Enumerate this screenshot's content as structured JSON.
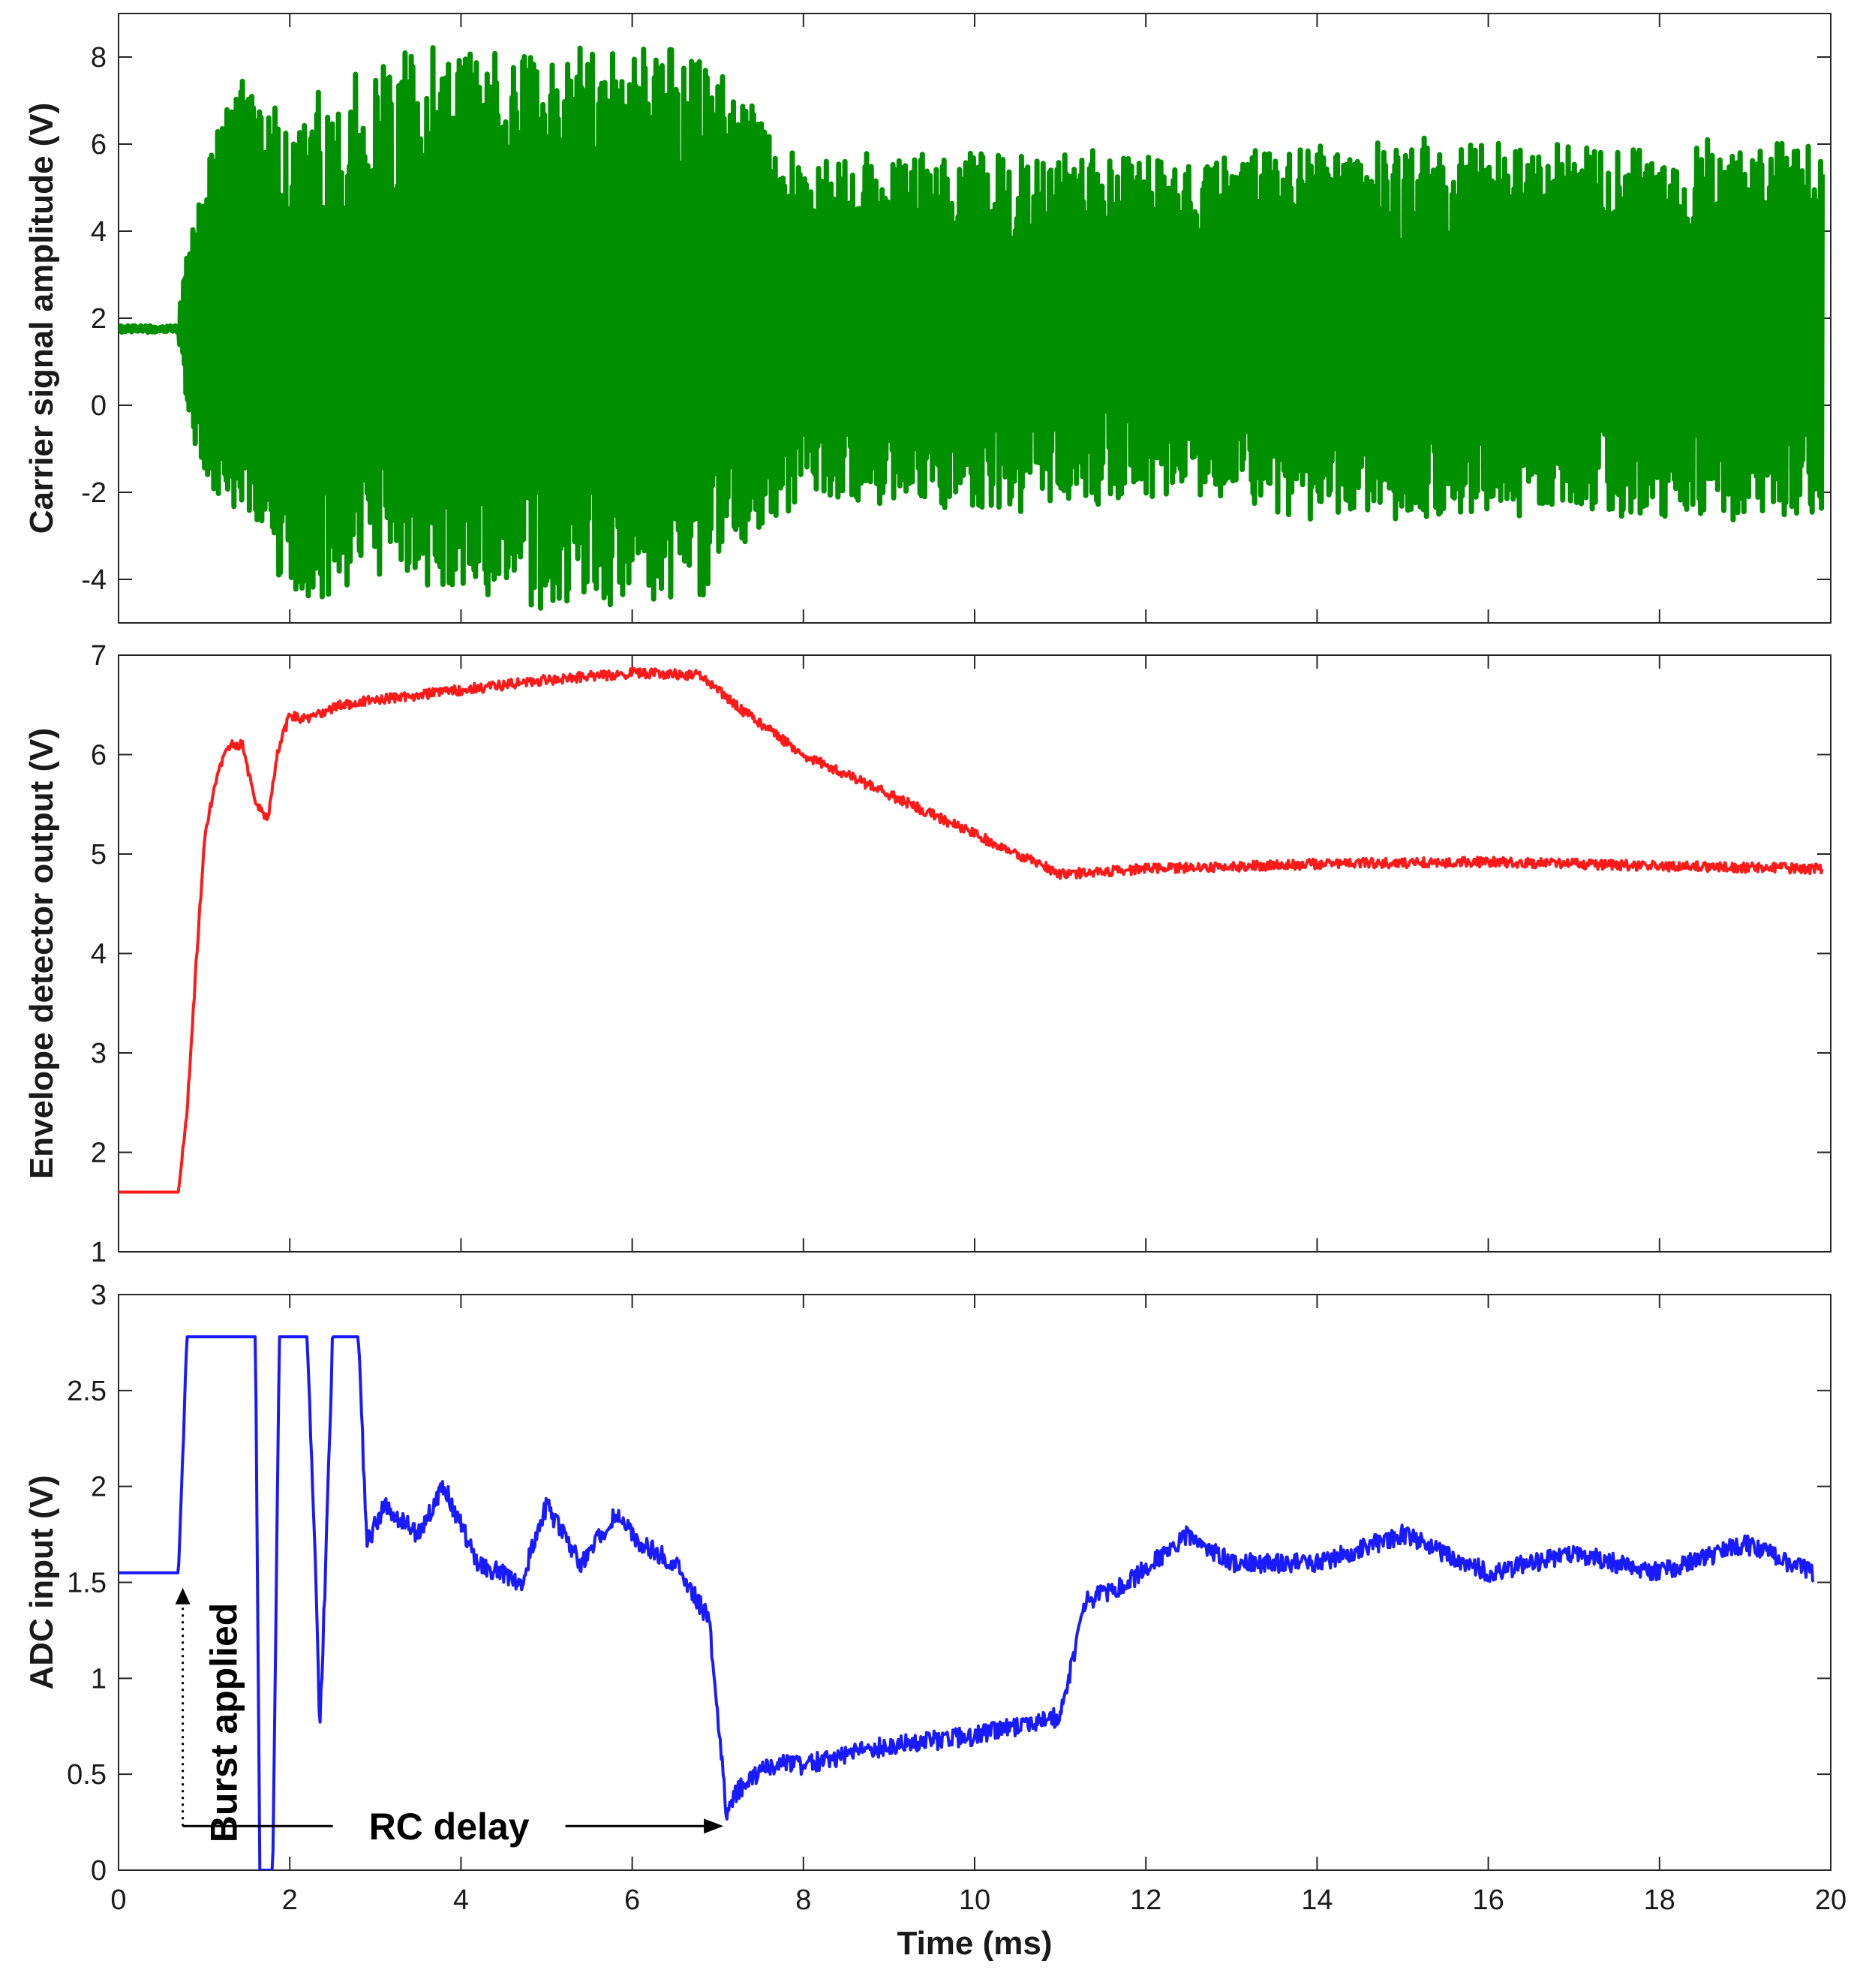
{
  "chart_data": [
    {
      "type": "line",
      "ylabel": "Carrier signal amplitude (V)",
      "xlabel": "",
      "xlim": [
        0,
        20
      ],
      "ylim": [
        -5,
        9
      ],
      "yticks": [
        "-4",
        "-2",
        "0",
        "2",
        "4",
        "6",
        "8"
      ],
      "grid": false,
      "series": [
        {
          "color": "#009000",
          "style": "dense-oscillation",
          "x": [
            0,
            0.7,
            0.8,
            1.0,
            1.5,
            2.0,
            3.0,
            4.0,
            5.0,
            6.0,
            6.8,
            7.5,
            8.0,
            10.0,
            12.0,
            14.0,
            16.0,
            18.0,
            19.9
          ],
          "upper": [
            1.9,
            1.9,
            3.5,
            6.0,
            7.5,
            7.0,
            8.0,
            8.2,
            8.0,
            8.3,
            8.3,
            6.5,
            5.6,
            5.8,
            5.7,
            6.0,
            6.0,
            6.0,
            6.0
          ],
          "lower": [
            1.6,
            1.6,
            0.0,
            -2.0,
            -3.0,
            -4.5,
            -4.0,
            -4.3,
            -4.6,
            -4.7,
            -4.3,
            -3.0,
            -2.0,
            -2.4,
            -2.2,
            -2.5,
            -2.6,
            -2.5,
            -2.5
          ]
        }
      ]
    },
    {
      "type": "line",
      "ylabel": "Envelope detector output (V)",
      "xlabel": "",
      "xlim": [
        0,
        20
      ],
      "ylim": [
        1,
        7
      ],
      "yticks": [
        "1",
        "2",
        "3",
        "4",
        "5",
        "6",
        "7"
      ],
      "grid": false,
      "series": [
        {
          "color": "#ff1a1a",
          "x": [
            0,
            0.7,
            0.8,
            0.9,
            1.0,
            1.1,
            1.2,
            1.3,
            1.45,
            1.6,
            1.75,
            1.85,
            2.0,
            2.2,
            2.6,
            3.0,
            4.0,
            5.0,
            6.0,
            6.8,
            7.2,
            8.0,
            9.0,
            10.0,
            11.0,
            12.0,
            14.0,
            16.0,
            18.0,
            19.9
          ],
          "y": [
            1.6,
            1.6,
            2.4,
            3.8,
            5.1,
            5.6,
            5.9,
            6.1,
            6.1,
            5.5,
            5.35,
            6.0,
            6.4,
            6.35,
            6.5,
            6.55,
            6.65,
            6.75,
            6.82,
            6.8,
            6.5,
            6.0,
            5.6,
            5.2,
            4.8,
            4.85,
            4.9,
            4.92,
            4.88,
            4.85
          ],
          "noise": 0.05
        }
      ]
    },
    {
      "type": "line",
      "ylabel": "ADC input (V)",
      "xlabel": "Time (ms)",
      "xlim": [
        0,
        20
      ],
      "ylim": [
        0,
        3
      ],
      "xticks": [
        "0",
        "2",
        "4",
        "6",
        "8",
        "10",
        "12",
        "14",
        "16",
        "18",
        "20"
      ],
      "yticks": [
        "0",
        "0.5",
        "1",
        "1.5",
        "2",
        "2.5",
        "3"
      ],
      "grid": false,
      "series": [
        {
          "color": "#1a1aff",
          "x": [
            0,
            0.7,
            0.8,
            1.6,
            1.65,
            1.75,
            1.8,
            1.88,
            1.95,
            2.2,
            2.3,
            2.35,
            2.42,
            2.5,
            2.8,
            2.9,
            3.1,
            3.5,
            3.8,
            4.2,
            4.7,
            5.0,
            5.4,
            5.8,
            6.1,
            6.5,
            6.9,
            7.1,
            7.2,
            7.6,
            8.0,
            9.0,
            10.0,
            11.0,
            11.3,
            11.8,
            12.5,
            13.0,
            14.0,
            15.0,
            16.0,
            17.0,
            18.0,
            19.0,
            19.8
          ],
          "y": [
            1.55,
            1.55,
            2.78,
            2.78,
            0.0,
            0.0,
            0.0,
            2.78,
            2.78,
            2.78,
            1.6,
            0.7,
            1.6,
            2.78,
            2.78,
            1.7,
            1.9,
            1.75,
            2.0,
            1.6,
            1.5,
            1.9,
            1.6,
            1.85,
            1.7,
            1.6,
            1.3,
            0.3,
            0.4,
            0.55,
            0.55,
            0.65,
            0.7,
            0.8,
            1.4,
            1.5,
            1.75,
            1.6,
            1.6,
            1.75,
            1.55,
            1.65,
            1.55,
            1.7,
            1.55
          ],
          "noise": 0.05
        }
      ],
      "annotations": [
        {
          "text": "Burst applied",
          "at_x": 0.75
        },
        {
          "text": "RC delay",
          "from_x": 0.75,
          "to_x": 7.1
        }
      ]
    }
  ]
}
